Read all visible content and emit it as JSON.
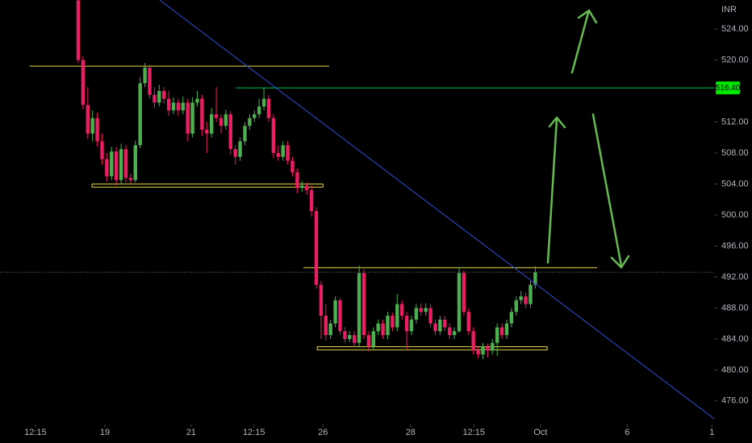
{
  "chart_data": {
    "type": "candlestick",
    "currency": "INR",
    "up_color": "#4caf50",
    "down_color": "#e91e63",
    "candles": [
      [
        527.7,
        528,
        519.6,
        520.0
      ],
      [
        520.0,
        520.5,
        513.6,
        514.2
      ],
      [
        514.2,
        516.5,
        509.8,
        510.5
      ],
      [
        510.5,
        513.5,
        509.5,
        512.5
      ],
      [
        512.5,
        513.2,
        508.8,
        509.5
      ],
      [
        509.5,
        510.5,
        506.5,
        507.2
      ],
      [
        507.2,
        508,
        504.3,
        505.0
      ],
      [
        505.0,
        508.8,
        504.5,
        508.2
      ],
      [
        508.2,
        508.8,
        503.8,
        504.5
      ],
      [
        504.5,
        509.2,
        504,
        508.5
      ],
      [
        508.5,
        509,
        504.2,
        504.8
      ],
      [
        504.8,
        505.3,
        504,
        504.5
      ],
      [
        504.5,
        509.6,
        504.2,
        509.0
      ],
      [
        509.0,
        517.8,
        508.6,
        517.0
      ],
      [
        517.0,
        519.6,
        516.5,
        519.0
      ],
      [
        519.0,
        519.4,
        515,
        515.5
      ],
      [
        515.5,
        516.5,
        513.8,
        514.5
      ],
      [
        514.5,
        516.8,
        514,
        516.0
      ],
      [
        516.0,
        516.5,
        514.4,
        515.0
      ],
      [
        515.0,
        516,
        512.8,
        513.5
      ],
      [
        513.5,
        515.2,
        513,
        514.5
      ],
      [
        514.5,
        515,
        512.8,
        513.5
      ],
      [
        513.5,
        515.3,
        513,
        514.5
      ],
      [
        514.5,
        515,
        509.5,
        510.5
      ],
      [
        510.5,
        515.2,
        510,
        514.5
      ],
      [
        514.5,
        516,
        514,
        515.0
      ],
      [
        515.0,
        515.5,
        510.2,
        511.0
      ],
      [
        511.0,
        512,
        508,
        510.5
      ],
      [
        510.5,
        513.8,
        510,
        513.0
      ],
      [
        513.0,
        516.5,
        512,
        512.5
      ],
      [
        512.5,
        513,
        510.5,
        511.5
      ],
      [
        511.5,
        513.6,
        511,
        513.0
      ],
      [
        513.0,
        513.4,
        507.8,
        508.5
      ],
      [
        508.5,
        509,
        506.5,
        507.5
      ],
      [
        507.5,
        510,
        507,
        509.5
      ],
      [
        509.5,
        512,
        509,
        511.5
      ],
      [
        511.5,
        513,
        511,
        512.5
      ],
      [
        512.5,
        513.5,
        512,
        513.0
      ],
      [
        513.0,
        515,
        512.5,
        514.0
      ],
      [
        514.0,
        516.4,
        513.5,
        515.0
      ],
      [
        515.0,
        515.5,
        512,
        512.5
      ],
      [
        512.5,
        513,
        507.4,
        508.0
      ],
      [
        508.0,
        509,
        507,
        507.5
      ],
      [
        507.5,
        509.5,
        507,
        509.0
      ],
      [
        509.0,
        509.5,
        506.5,
        507.0
      ],
      [
        507.0,
        507.5,
        505,
        505.5
      ],
      [
        505.5,
        506,
        502.8,
        503.5
      ],
      [
        503.5,
        504.4,
        503,
        503.8
      ],
      [
        503.8,
        504.2,
        502.6,
        503.2
      ],
      [
        503.2,
        503.8,
        499.8,
        500.5
      ],
      [
        500.5,
        501,
        490.5,
        491.0
      ],
      [
        491.0,
        491.5,
        484,
        487.0
      ],
      [
        487.0,
        488.5,
        483.8,
        484.5
      ],
      [
        484.5,
        486.5,
        484,
        486.0
      ],
      [
        486.0,
        489.5,
        485.5,
        489.0
      ],
      [
        489.0,
        489.3,
        484.5,
        485.0
      ],
      [
        485.0,
        485.5,
        483.5,
        484.0
      ],
      [
        484.0,
        485,
        483.6,
        484.5
      ],
      [
        484.5,
        485,
        483,
        483.5
      ],
      [
        483.5,
        493.5,
        483,
        492.5
      ],
      [
        492.5,
        493,
        484,
        484.5
      ],
      [
        484.5,
        485,
        482.4,
        483.0
      ],
      [
        483.0,
        485.5,
        482.6,
        485.0
      ],
      [
        485.0,
        486.5,
        484.5,
        486.0
      ],
      [
        486.0,
        486.5,
        484,
        484.5
      ],
      [
        484.5,
        487.5,
        484,
        487.0
      ],
      [
        487.0,
        487.4,
        485,
        485.5
      ],
      [
        485.5,
        489.8,
        485,
        488.5
      ],
      [
        488.5,
        489,
        486.5,
        487.0
      ],
      [
        487.0,
        487.5,
        482.6,
        485.0
      ],
      [
        485.0,
        487,
        484.5,
        486.5
      ],
      [
        486.5,
        488.5,
        486,
        488.0
      ],
      [
        488.0,
        488.6,
        487,
        487.5
      ],
      [
        487.5,
        488.6,
        487,
        488.0
      ],
      [
        488.0,
        488.5,
        485.5,
        486.0
      ],
      [
        486.0,
        486.5,
        484.5,
        485.0
      ],
      [
        485.0,
        487,
        484.5,
        486.5
      ],
      [
        486.5,
        487,
        485,
        485.5
      ],
      [
        485.5,
        486,
        484,
        484.5
      ],
      [
        484.5,
        485.5,
        484,
        485.0
      ],
      [
        485.0,
        493.3,
        484.8,
        492.5
      ],
      [
        492.5,
        492.8,
        487,
        487.5
      ],
      [
        487.5,
        488,
        484.5,
        485.0
      ],
      [
        485.0,
        485.5,
        482,
        482.5
      ],
      [
        482.5,
        483,
        481.5,
        482.0
      ],
      [
        482.0,
        483.5,
        481.4,
        483.0
      ],
      [
        483.0,
        483.4,
        481.6,
        482.5
      ],
      [
        482.5,
        484,
        482,
        483.5
      ],
      [
        483.5,
        486,
        481.8,
        485.5
      ],
      [
        485.5,
        486,
        484,
        484.5
      ],
      [
        484.5,
        486.5,
        484,
        486.0
      ],
      [
        486.0,
        488,
        485.5,
        487.5
      ],
      [
        487.5,
        489.5,
        487,
        489.0
      ],
      [
        489.0,
        490.2,
        488.5,
        489.5
      ],
      [
        489.5,
        490,
        488,
        488.5
      ],
      [
        488.5,
        491.5,
        488,
        491.0
      ],
      [
        491.0,
        493.4,
        490.5,
        492.6
      ]
    ],
    "xlim": [
      -16.44,
      133.56
    ],
    "xticks": [
      {
        "value": -9.0,
        "label": "12:15"
      },
      {
        "value": 5.6,
        "label": "19"
      },
      {
        "value": 23.7,
        "label": "21"
      },
      {
        "value": 36.9,
        "label": "12:15"
      },
      {
        "value": 51.4,
        "label": "26"
      },
      {
        "value": 69.8,
        "label": "28"
      },
      {
        "value": 83.1,
        "label": "12:15"
      },
      {
        "value": 97.1,
        "label": "Oct"
      },
      {
        "value": 115.3,
        "label": "6"
      },
      {
        "value": 133.1,
        "label": "1"
      }
    ],
    "ylim": [
      473.0,
      527.74
    ],
    "yticks": [
      {
        "value": 476,
        "label": "476.00"
      },
      {
        "value": 480,
        "label": "480.00"
      },
      {
        "value": 484,
        "label": "484.00"
      },
      {
        "value": 488,
        "label": "488.00"
      },
      {
        "value": 492,
        "label": "492.00"
      },
      {
        "value": 496,
        "label": "496.00"
      },
      {
        "value": 500,
        "label": "500.00"
      },
      {
        "value": 504,
        "label": "504.00"
      },
      {
        "value": 508,
        "label": "508.00"
      },
      {
        "value": 512,
        "label": "512.00"
      },
      {
        "value": 520,
        "label": "520.00"
      },
      {
        "value": 524,
        "label": "524.00"
      }
    ],
    "price_label": {
      "value": 516.4,
      "label": "516.40",
      "color": "#00e600"
    },
    "levels": [
      {
        "y": 519.2,
        "x": [
          -10.2,
          52.7
        ],
        "color": "#e6d84a"
      },
      {
        "y": 493.2,
        "x": [
          47.3,
          109.0
        ],
        "color": "#e6d84a"
      },
      {
        "y": 516.4,
        "x": [
          33.1,
          133.6
        ],
        "color": "#00c853"
      }
    ],
    "zones": [
      {
        "y": [
          503.6,
          504.0
        ],
        "x": [
          2.9,
          51.4
        ],
        "color": "#e6d84a"
      },
      {
        "y": [
          482.6,
          483.0
        ],
        "x": [
          50.2,
          98.5
        ],
        "color": "#e6d84a"
      }
    ],
    "trendline": {
      "x": [
        17.1,
        133.6
      ],
      "y": [
        527.74,
        473.7
      ],
      "color": "#2f4fd8"
    }
  }
}
